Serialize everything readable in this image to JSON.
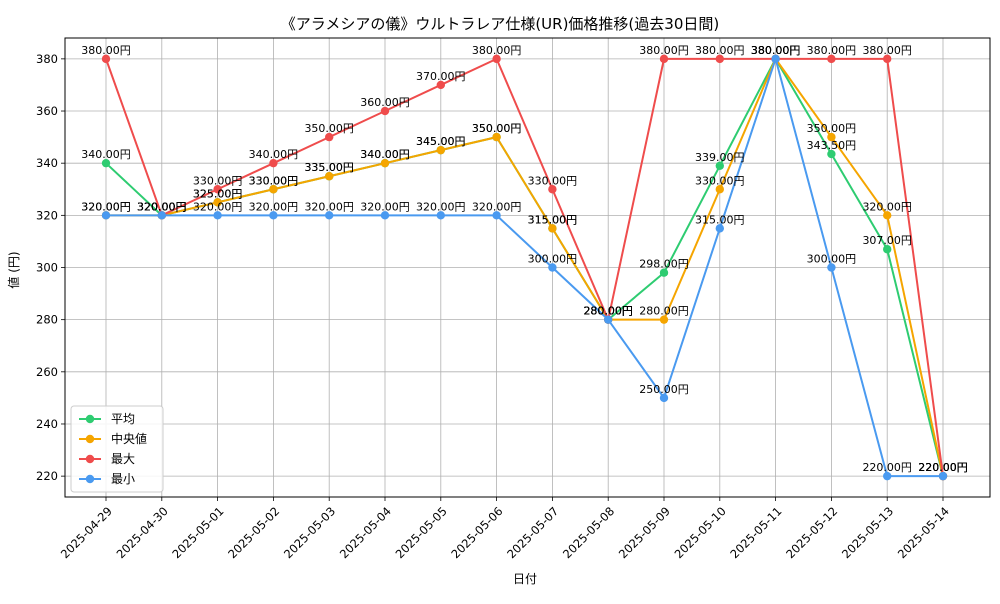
{
  "chart_data": {
    "type": "line",
    "title": "《アラメシアの儀》ウルトラレア仕様(UR)価格推移(過去30日間)",
    "xlabel": "日付",
    "ylabel": "値 (円)",
    "categories": [
      "2025-04-29",
      "2025-04-30",
      "2025-05-01",
      "2025-05-02",
      "2025-05-03",
      "2025-05-04",
      "2025-05-05",
      "2025-05-06",
      "2025-05-07",
      "2025-05-08",
      "2025-05-09",
      "2025-05-10",
      "2025-05-11",
      "2025-05-12",
      "2025-05-13",
      "2025-05-14"
    ],
    "ylim": [
      212,
      388
    ],
    "yticks": [
      220,
      240,
      260,
      280,
      300,
      320,
      340,
      360,
      380
    ],
    "grid": true,
    "legend_position": "lower-left",
    "label_suffix": "円",
    "series": [
      {
        "name": "平均",
        "color": "#2ecc71",
        "values": [
          340,
          320,
          325,
          330,
          335,
          340,
          345,
          350,
          315,
          280,
          298,
          339,
          380,
          343.5,
          307,
          220
        ]
      },
      {
        "name": "中央値",
        "color": "#f5a500",
        "values": [
          320,
          320,
          325,
          330,
          335,
          340,
          345,
          350,
          315,
          280,
          280,
          330,
          380,
          350,
          320,
          220
        ]
      },
      {
        "name": "最大",
        "color": "#ef4c4c",
        "values": [
          380,
          320,
          330,
          340,
          350,
          360,
          370,
          380,
          330,
          280,
          380,
          380,
          380,
          380,
          380,
          220
        ]
      },
      {
        "name": "最小",
        "color": "#4a9af0",
        "values": [
          320,
          320,
          320,
          320,
          320,
          320,
          320,
          320,
          300,
          280,
          250,
          315,
          380,
          300,
          220,
          220
        ]
      }
    ]
  }
}
